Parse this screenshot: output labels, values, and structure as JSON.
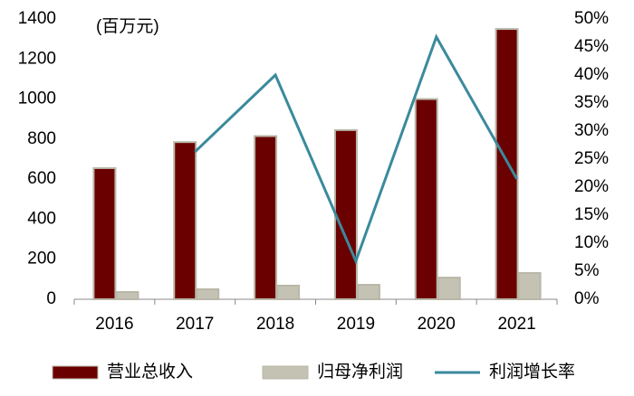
{
  "chart_data": {
    "type": "bar-line",
    "unit_label": "(百万元)",
    "categories": [
      "2016",
      "2017",
      "2018",
      "2019",
      "2020",
      "2021"
    ],
    "series": [
      {
        "name": "营业总收入",
        "type": "bar",
        "color": "#6b0000",
        "values": [
          655,
          785,
          815,
          845,
          1000,
          1350
        ]
      },
      {
        "name": "归母净利润",
        "type": "bar",
        "color": "#c4c2b2",
        "values": [
          36,
          50,
          68,
          72,
          108,
          131
        ]
      },
      {
        "name": "利润增长率",
        "type": "line",
        "axis": "y2",
        "color": "#3a8a9c",
        "values": [
          null,
          26.3,
          40,
          6.8,
          46.8,
          21.5
        ]
      }
    ],
    "ylim": [
      0,
      1400
    ],
    "yticks": [
      0,
      200,
      400,
      600,
      800,
      1000,
      1200,
      1400
    ],
    "y2lim": [
      0,
      50
    ],
    "y2ticks": [
      {
        "value": 0,
        "label": "0%"
      },
      {
        "value": 5,
        "label": "5%"
      },
      {
        "value": 10,
        "label": "10%"
      },
      {
        "value": 15,
        "label": "15%"
      },
      {
        "value": 20,
        "label": "20%"
      },
      {
        "value": 25,
        "label": "25%"
      },
      {
        "value": 30,
        "label": "30%"
      },
      {
        "value": 35,
        "label": "35%"
      },
      {
        "value": 40,
        "label": "40%"
      },
      {
        "value": 45,
        "label": "45%"
      },
      {
        "value": 50,
        "label": "50%"
      }
    ],
    "legend": "bottom"
  }
}
